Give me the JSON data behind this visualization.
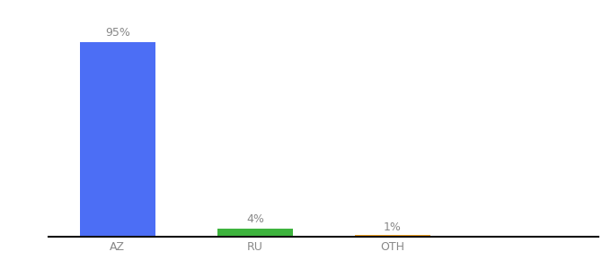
{
  "categories": [
    "AZ",
    "RU",
    "OTH"
  ],
  "values": [
    95,
    4,
    1
  ],
  "bar_colors": [
    "#4c6ef5",
    "#3db33d",
    "#f0a020"
  ],
  "labels": [
    "95%",
    "4%",
    "1%"
  ],
  "label_fontsize": 9,
  "tick_fontsize": 9,
  "ylim": [
    0,
    105
  ],
  "bar_width": 0.55,
  "background_color": "#ffffff",
  "x_positions": [
    0,
    1,
    2
  ],
  "xlim": [
    -0.5,
    3.5
  ]
}
